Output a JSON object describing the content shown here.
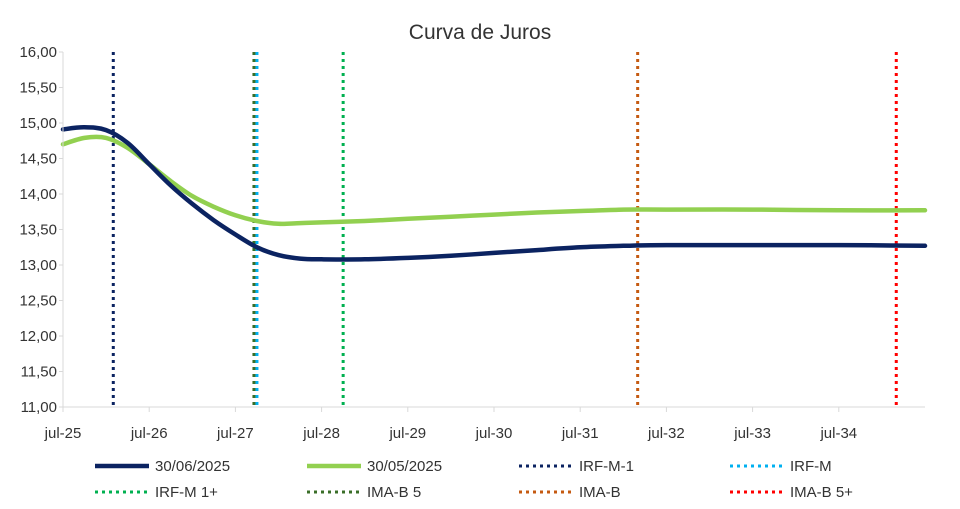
{
  "chart_data": {
    "type": "line",
    "title": "Curva de Juros",
    "xlabel": "",
    "ylabel": "",
    "ylim": [
      11.0,
      16.0
    ],
    "xlim": [
      "2025-07",
      "2035-07"
    ],
    "x_ticks": [
      "jul-25",
      "jul-26",
      "jul-27",
      "jul-28",
      "jul-29",
      "jul-30",
      "jul-31",
      "jul-32",
      "jul-33",
      "jul-34"
    ],
    "y_ticks": [
      "11,00",
      "11,50",
      "12,00",
      "12,50",
      "13,00",
      "13,50",
      "14,00",
      "14,50",
      "15,00",
      "15,50",
      "16,00"
    ],
    "grid": false,
    "legend_position": "bottom",
    "series": [
      {
        "name": "30/06/2025",
        "color": "#0b2361",
        "style": "solid",
        "x": [
          "2025-07",
          "2025-10",
          "2026-01",
          "2026-04",
          "2026-07",
          "2026-10",
          "2027-01",
          "2027-04",
          "2027-07",
          "2027-10",
          "2028-01",
          "2028-04",
          "2028-07",
          "2029-01",
          "2029-07",
          "2030-01",
          "2030-07",
          "2031-01",
          "2031-07",
          "2032-01",
          "2032-07",
          "2033-07",
          "2034-07",
          "2035-07"
        ],
        "values": [
          14.91,
          14.94,
          14.9,
          14.72,
          14.42,
          14.12,
          13.86,
          13.63,
          13.43,
          13.25,
          13.14,
          13.09,
          13.08,
          13.08,
          13.1,
          13.13,
          13.17,
          13.21,
          13.25,
          13.27,
          13.28,
          13.28,
          13.28,
          13.27
        ]
      },
      {
        "name": "30/05/2025",
        "color": "#92d050",
        "style": "solid",
        "x": [
          "2025-07",
          "2025-10",
          "2026-01",
          "2026-04",
          "2026-07",
          "2026-10",
          "2027-01",
          "2027-04",
          "2027-07",
          "2027-10",
          "2028-01",
          "2028-04",
          "2028-07",
          "2029-01",
          "2029-07",
          "2030-01",
          "2030-07",
          "2031-01",
          "2031-07",
          "2032-01",
          "2032-07",
          "2033-07",
          "2034-07",
          "2035-07"
        ],
        "values": [
          14.7,
          14.79,
          14.79,
          14.65,
          14.42,
          14.18,
          13.97,
          13.82,
          13.7,
          13.62,
          13.58,
          13.59,
          13.6,
          13.62,
          13.65,
          13.68,
          13.71,
          13.74,
          13.76,
          13.78,
          13.78,
          13.78,
          13.77,
          13.77
        ]
      },
      {
        "name": "IRF-M-1",
        "color": "#0b2361",
        "style": "dotted-vertical",
        "x": "2026-02"
      },
      {
        "name": "IRF-M",
        "color": "#00b0f0",
        "style": "dotted-vertical",
        "x": "2027-10"
      },
      {
        "name": "IRF-M 1+",
        "color": "#00b050",
        "style": "dotted-vertical",
        "x": "2028-10"
      },
      {
        "name": "IMA-B 5",
        "color": "#3a6e28",
        "style": "dotted-vertical",
        "x": "2027-10"
      },
      {
        "name": "IMA-B",
        "color": "#c55a11",
        "style": "dotted-vertical",
        "x": "2032-03"
      },
      {
        "name": "IMA-B 5+",
        "color": "#ff0000",
        "style": "dotted-vertical",
        "x": "2035-03"
      }
    ]
  }
}
